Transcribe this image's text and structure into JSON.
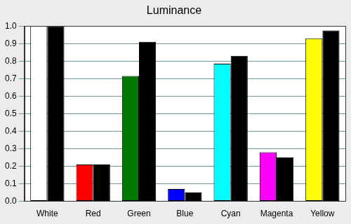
{
  "chart_data": {
    "type": "bar",
    "title": "Luminance",
    "categories": [
      "White",
      "Red",
      "Green",
      "Blue",
      "Cyan",
      "Magenta",
      "Yellow"
    ],
    "series": [
      {
        "colors": [
          "#ffffff",
          "#ff0000",
          "#007a00",
          "#0000ff",
          "#00ffff",
          "#ff00ff",
          "#ffff00"
        ],
        "values": [
          1.0,
          0.21,
          0.715,
          0.07,
          0.785,
          0.28,
          0.93
        ]
      },
      {
        "color": "#000000",
        "values": [
          1.0,
          0.21,
          0.91,
          0.05,
          0.83,
          0.25,
          0.975
        ]
      }
    ],
    "ylim": [
      0,
      1
    ],
    "yticks": [
      {
        "value": 0,
        "label": "0.0"
      },
      0.1,
      0.2,
      0.3,
      0.4,
      0.5,
      0.6,
      0.7,
      0.8,
      0.9,
      {
        "value": 1,
        "label": "1.0"
      }
    ],
    "grid": true
  }
}
